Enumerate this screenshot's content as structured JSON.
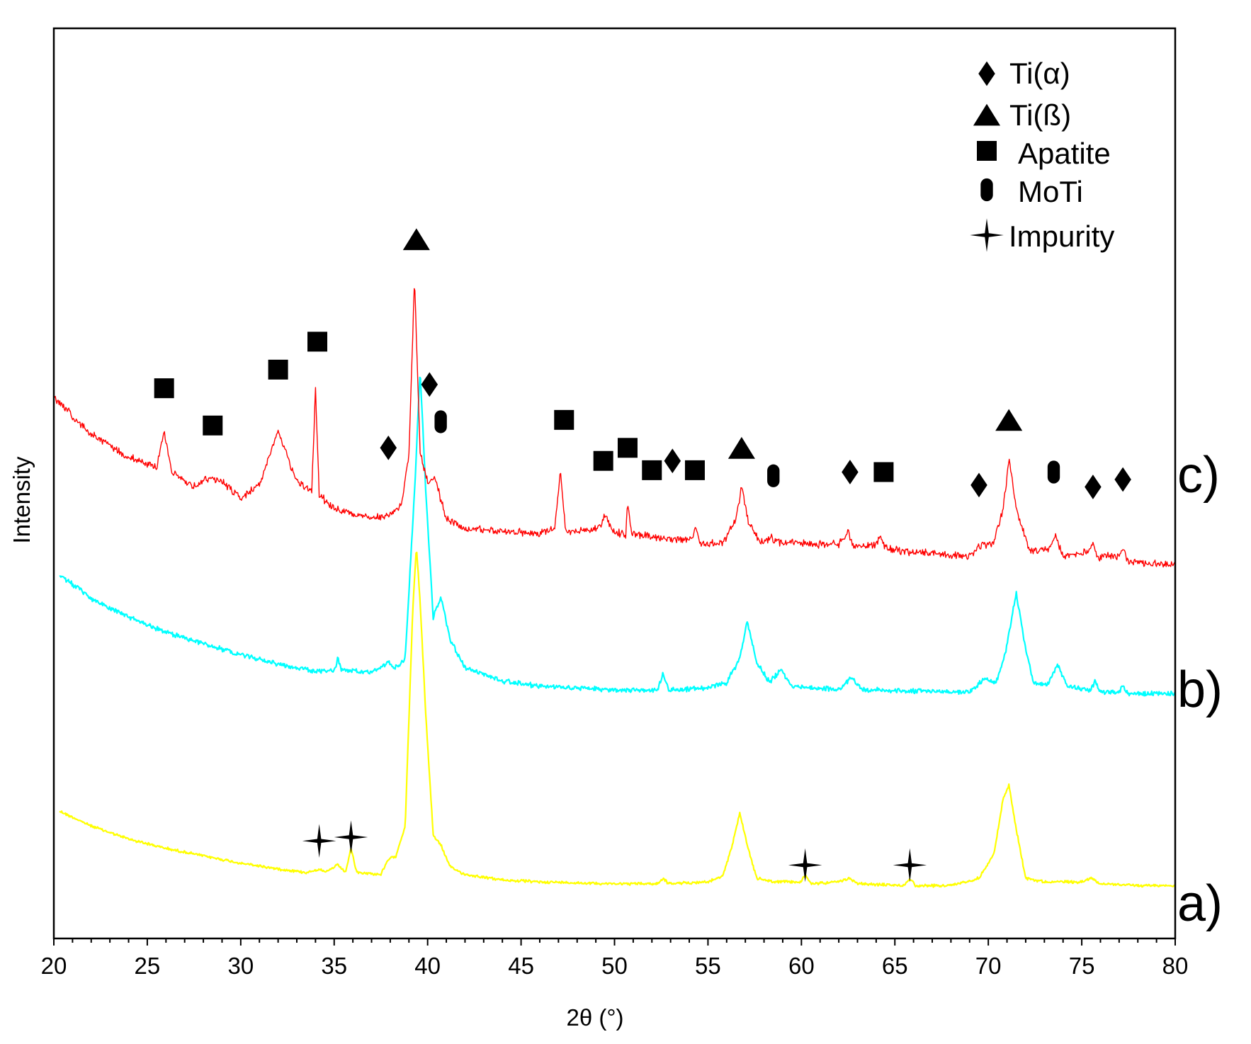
{
  "chart_data": {
    "type": "line",
    "title": "",
    "xlabel": "2θ (°)",
    "ylabel": "Intensity",
    "xlim": [
      20,
      80
    ],
    "xticks": [
      20,
      25,
      30,
      35,
      40,
      45,
      50,
      55,
      60,
      65,
      70,
      75,
      80
    ],
    "grid": false,
    "legend_position": "top-right",
    "legend": [
      {
        "marker": "diamond",
        "label": "Ti(α)"
      },
      {
        "marker": "triangle",
        "label": "Ti(ß)"
      },
      {
        "marker": "square",
        "label": "Apatite"
      },
      {
        "marker": "capsule",
        "label": "MoTi"
      },
      {
        "marker": "star",
        "label": "Impurity"
      }
    ],
    "series": [
      {
        "name": "a)",
        "color": "#ffff00",
        "noise": 0.8,
        "points": [
          [
            20.3,
            0.68
          ],
          [
            22,
            0.6
          ],
          [
            24,
            0.53
          ],
          [
            26,
            0.48
          ],
          [
            28,
            0.44
          ],
          [
            30,
            0.4
          ],
          [
            32,
            0.37
          ],
          [
            33.5,
            0.35
          ],
          [
            34.2,
            0.37
          ],
          [
            34.5,
            0.35
          ],
          [
            35.2,
            0.39
          ],
          [
            35.6,
            0.35
          ],
          [
            35.9,
            0.48
          ],
          [
            36.2,
            0.35
          ],
          [
            37.5,
            0.34
          ],
          [
            37.9,
            0.42
          ],
          [
            38.3,
            0.44
          ],
          [
            38.8,
            0.6
          ],
          [
            39.2,
            1.75
          ],
          [
            39.4,
            2.1
          ],
          [
            39.6,
            1.8
          ],
          [
            39.9,
            1.2
          ],
          [
            40.3,
            0.55
          ],
          [
            40.7,
            0.5
          ],
          [
            41.2,
            0.38
          ],
          [
            42,
            0.34
          ],
          [
            44,
            0.31
          ],
          [
            46,
            0.3
          ],
          [
            50,
            0.29
          ],
          [
            52.3,
            0.29
          ],
          [
            52.6,
            0.32
          ],
          [
            52.9,
            0.29
          ],
          [
            55,
            0.3
          ],
          [
            55.8,
            0.33
          ],
          [
            56.3,
            0.5
          ],
          [
            56.7,
            0.67
          ],
          [
            57.1,
            0.5
          ],
          [
            57.6,
            0.32
          ],
          [
            58.5,
            0.3
          ],
          [
            60,
            0.3
          ],
          [
            60.2,
            0.34
          ],
          [
            60.5,
            0.29
          ],
          [
            62,
            0.3
          ],
          [
            62.6,
            0.32
          ],
          [
            63,
            0.29
          ],
          [
            65.5,
            0.28
          ],
          [
            65.8,
            0.32
          ],
          [
            66.1,
            0.28
          ],
          [
            68,
            0.28
          ],
          [
            69.5,
            0.32
          ],
          [
            70.3,
            0.45
          ],
          [
            70.8,
            0.75
          ],
          [
            71.1,
            0.82
          ],
          [
            71.5,
            0.58
          ],
          [
            72,
            0.32
          ],
          [
            73,
            0.3
          ],
          [
            75,
            0.3
          ],
          [
            75.5,
            0.32
          ],
          [
            76,
            0.29
          ],
          [
            78,
            0.28
          ],
          [
            80,
            0.28
          ]
        ]
      },
      {
        "name": "b)",
        "color": "#00ffff",
        "noise": 1.4,
        "points": [
          [
            20.3,
            1.95
          ],
          [
            22,
            1.82
          ],
          [
            24,
            1.72
          ],
          [
            26,
            1.64
          ],
          [
            28,
            1.58
          ],
          [
            30,
            1.52
          ],
          [
            32,
            1.47
          ],
          [
            34,
            1.43
          ],
          [
            35,
            1.43
          ],
          [
            35.2,
            1.5
          ],
          [
            35.4,
            1.44
          ],
          [
            37,
            1.42
          ],
          [
            37.9,
            1.48
          ],
          [
            38.2,
            1.44
          ],
          [
            38.8,
            1.5
          ],
          [
            39.3,
            2.4
          ],
          [
            39.6,
            3.05
          ],
          [
            39.9,
            2.4
          ],
          [
            40.3,
            1.72
          ],
          [
            40.7,
            1.83
          ],
          [
            41.2,
            1.6
          ],
          [
            42,
            1.45
          ],
          [
            44,
            1.38
          ],
          [
            46,
            1.35
          ],
          [
            50,
            1.33
          ],
          [
            52.3,
            1.33
          ],
          [
            52.6,
            1.42
          ],
          [
            52.9,
            1.33
          ],
          [
            55,
            1.34
          ],
          [
            56,
            1.37
          ],
          [
            56.7,
            1.5
          ],
          [
            57.1,
            1.7
          ],
          [
            57.6,
            1.48
          ],
          [
            58.3,
            1.37
          ],
          [
            58.9,
            1.44
          ],
          [
            59.5,
            1.35
          ],
          [
            62,
            1.33
          ],
          [
            62.7,
            1.4
          ],
          [
            63.2,
            1.33
          ],
          [
            69,
            1.32
          ],
          [
            69.8,
            1.39
          ],
          [
            70.4,
            1.36
          ],
          [
            70.9,
            1.52
          ],
          [
            71.5,
            1.85
          ],
          [
            71.9,
            1.6
          ],
          [
            72.4,
            1.37
          ],
          [
            73.2,
            1.36
          ],
          [
            73.7,
            1.47
          ],
          [
            74.2,
            1.35
          ],
          [
            75.5,
            1.33
          ],
          [
            75.7,
            1.38
          ],
          [
            76,
            1.32
          ],
          [
            77,
            1.32
          ],
          [
            77.2,
            1.36
          ],
          [
            77.5,
            1.31
          ],
          [
            80,
            1.31
          ]
        ]
      },
      {
        "name": "c)",
        "color": "#ff0000",
        "noise": 2.2,
        "points": [
          [
            20,
            2.9
          ],
          [
            22,
            2.7
          ],
          [
            24,
            2.58
          ],
          [
            25.5,
            2.52
          ],
          [
            25.9,
            2.72
          ],
          [
            26.3,
            2.5
          ],
          [
            27.5,
            2.42
          ],
          [
            28.3,
            2.47
          ],
          [
            29,
            2.45
          ],
          [
            30,
            2.36
          ],
          [
            31,
            2.43
          ],
          [
            31.6,
            2.6
          ],
          [
            32,
            2.72
          ],
          [
            32.5,
            2.58
          ],
          [
            33,
            2.45
          ],
          [
            33.8,
            2.4
          ],
          [
            34,
            2.95
          ],
          [
            34.2,
            2.38
          ],
          [
            35,
            2.3
          ],
          [
            37,
            2.25
          ],
          [
            38,
            2.27
          ],
          [
            38.6,
            2.32
          ],
          [
            39.0,
            2.6
          ],
          [
            39.3,
            3.55
          ],
          [
            39.6,
            2.6
          ],
          [
            40.0,
            2.45
          ],
          [
            40.4,
            2.46
          ],
          [
            41,
            2.25
          ],
          [
            42,
            2.2
          ],
          [
            44,
            2.18
          ],
          [
            46,
            2.17
          ],
          [
            46.8,
            2.2
          ],
          [
            47.1,
            2.5
          ],
          [
            47.4,
            2.18
          ],
          [
            49,
            2.19
          ],
          [
            49.5,
            2.26
          ],
          [
            50,
            2.18
          ],
          [
            50.6,
            2.16
          ],
          [
            50.7,
            2.35
          ],
          [
            50.9,
            2.17
          ],
          [
            52,
            2.15
          ],
          [
            53,
            2.14
          ],
          [
            54.2,
            2.14
          ],
          [
            54.3,
            2.22
          ],
          [
            54.6,
            2.12
          ],
          [
            55.8,
            2.12
          ],
          [
            56.5,
            2.25
          ],
          [
            56.8,
            2.42
          ],
          [
            57.2,
            2.22
          ],
          [
            57.8,
            2.12
          ],
          [
            58.4,
            2.15
          ],
          [
            58.8,
            2.12
          ],
          [
            62,
            2.11
          ],
          [
            62.5,
            2.18
          ],
          [
            62.8,
            2.1
          ],
          [
            64,
            2.11
          ],
          [
            64.2,
            2.16
          ],
          [
            64.5,
            2.09
          ],
          [
            67,
            2.06
          ],
          [
            69,
            2.05
          ],
          [
            69.6,
            2.1
          ],
          [
            70.3,
            2.12
          ],
          [
            70.8,
            2.3
          ],
          [
            71.1,
            2.57
          ],
          [
            71.5,
            2.3
          ],
          [
            72.2,
            2.08
          ],
          [
            73.3,
            2.09
          ],
          [
            73.6,
            2.16
          ],
          [
            74,
            2.05
          ],
          [
            75.4,
            2.07
          ],
          [
            75.6,
            2.12
          ],
          [
            75.9,
            2.04
          ],
          [
            77,
            2.05
          ],
          [
            77.2,
            2.09
          ],
          [
            77.5,
            2.02
          ],
          [
            80,
            2.0
          ]
        ]
      }
    ],
    "curve_labels": [
      "c)",
      "b)",
      "a)"
    ],
    "markers": [
      {
        "type": "square",
        "series": "c)",
        "x": 25.9,
        "y": 2.95
      },
      {
        "type": "square",
        "series": "c)",
        "x": 28.5,
        "y": 2.75
      },
      {
        "type": "square",
        "series": "c)",
        "x": 32.0,
        "y": 3.05
      },
      {
        "type": "square",
        "series": "c)",
        "x": 34.1,
        "y": 3.2
      },
      {
        "type": "diamond",
        "series": "c)",
        "x": 37.9,
        "y": 2.63
      },
      {
        "type": "triangle",
        "series": "c)",
        "x": 39.4,
        "y": 3.75
      },
      {
        "type": "diamond",
        "series": "c)",
        "x": 40.1,
        "y": 2.97
      },
      {
        "type": "capsule",
        "series": "c)",
        "x": 40.7,
        "y": 2.77
      },
      {
        "type": "square",
        "series": "c)",
        "x": 47.3,
        "y": 2.78
      },
      {
        "type": "square",
        "series": "c)",
        "x": 49.4,
        "y": 2.56
      },
      {
        "type": "square",
        "series": "c)",
        "x": 50.7,
        "y": 2.63
      },
      {
        "type": "square",
        "series": "c)",
        "x": 52.0,
        "y": 2.51
      },
      {
        "type": "diamond",
        "series": "c)",
        "x": 53.1,
        "y": 2.56
      },
      {
        "type": "square",
        "series": "c)",
        "x": 54.3,
        "y": 2.51
      },
      {
        "type": "triangle",
        "series": "c)",
        "x": 56.8,
        "y": 2.63
      },
      {
        "type": "capsule",
        "series": "c)",
        "x": 58.5,
        "y": 2.48
      },
      {
        "type": "diamond",
        "series": "c)",
        "x": 62.6,
        "y": 2.5
      },
      {
        "type": "square",
        "series": "c)",
        "x": 64.4,
        "y": 2.5
      },
      {
        "type": "diamond",
        "series": "c)",
        "x": 69.5,
        "y": 2.43
      },
      {
        "type": "triangle",
        "series": "c)",
        "x": 71.1,
        "y": 2.78
      },
      {
        "type": "capsule",
        "series": "c)",
        "x": 73.5,
        "y": 2.5
      },
      {
        "type": "diamond",
        "series": "c)",
        "x": 75.6,
        "y": 2.42
      },
      {
        "type": "diamond",
        "series": "c)",
        "x": 77.2,
        "y": 2.46
      },
      {
        "type": "star",
        "series": "a)",
        "x": 34.2,
        "y": 0.52
      },
      {
        "type": "star",
        "series": "a)",
        "x": 35.9,
        "y": 0.54
      },
      {
        "type": "star",
        "series": "a)",
        "x": 60.2,
        "y": 0.39
      },
      {
        "type": "star",
        "series": "a)",
        "x": 65.8,
        "y": 0.39
      }
    ]
  }
}
